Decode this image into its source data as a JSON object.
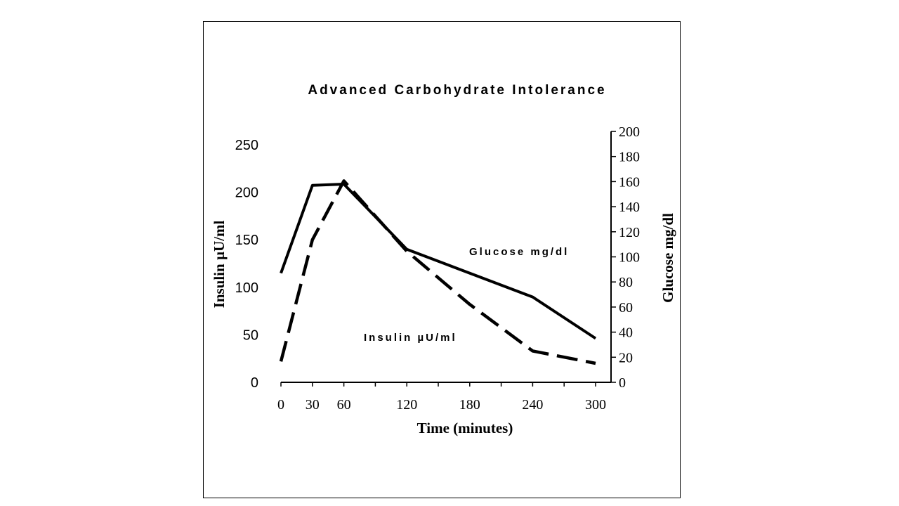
{
  "chart_data": {
    "type": "line",
    "title": "Advanced Carbohydrate Intolerance",
    "xlabel": "Time (minutes)",
    "ylabel_left": "Insulin µU/ml",
    "ylabel_right": "Glucose mg/dl",
    "x_ticks": [
      0,
      30,
      60,
      120,
      180,
      240,
      300
    ],
    "xlim": [
      0,
      300
    ],
    "ylim_left": [
      0,
      250
    ],
    "yticks_left": [
      0,
      50,
      100,
      150,
      200,
      250
    ],
    "ylim_right": [
      0,
      200
    ],
    "yticks_right": [
      0,
      20,
      40,
      60,
      80,
      100,
      120,
      140,
      160,
      180,
      200
    ],
    "series": [
      {
        "name": "Glucose mg/dl",
        "axis": "right",
        "style": "solid",
        "color": "#000000",
        "x": [
          0,
          30,
          60,
          120,
          240,
          300
        ],
        "y": [
          87,
          157,
          158,
          106,
          68,
          35
        ]
      },
      {
        "name": "Insulin µU/ml",
        "axis": "left",
        "style": "dashed",
        "color": "#000000",
        "x": [
          0,
          30,
          60,
          120,
          180,
          240,
          300
        ],
        "y": [
          22,
          150,
          212,
          138,
          82,
          33,
          20
        ]
      }
    ],
    "annotations": [
      {
        "text": "Glucose mg/dl",
        "series": "Glucose mg/dl"
      },
      {
        "text": "Insulin µU/ml",
        "series": "Insulin µU/ml"
      }
    ],
    "grid": false,
    "legend": "none"
  }
}
